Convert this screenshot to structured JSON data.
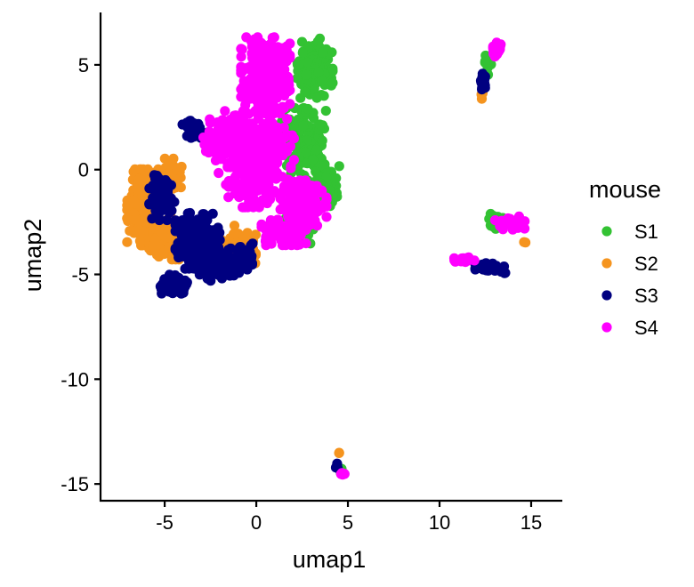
{
  "chart_data": {
    "type": "scatter",
    "xlabel": "umap1",
    "ylabel": "umap2",
    "xlim": [
      -8.5,
      16.7
    ],
    "ylim": [
      -15.8,
      7.5
    ],
    "x_ticks": [
      -5,
      0,
      5,
      10,
      15
    ],
    "y_ticks": [
      5,
      0,
      -5,
      -10,
      -15
    ],
    "x_tick_labels": [
      "-5",
      "0",
      "5",
      "10",
      "15"
    ],
    "y_tick_labels": [
      "5",
      "0",
      "-5",
      "-10",
      "-15"
    ],
    "grid": false,
    "legend": {
      "title": "mouse",
      "placement": "right",
      "entries": [
        "S1",
        "S2",
        "S3",
        "S4"
      ]
    },
    "series": [
      {
        "name": "S1",
        "color": "#33c233",
        "clusters": [
          {
            "cx": 3.2,
            "cy": 4.8,
            "sx": 0.8,
            "sy": 1.2,
            "n": 160
          },
          {
            "cx": 2.6,
            "cy": 1.0,
            "sx": 1.0,
            "sy": 1.6,
            "n": 160
          },
          {
            "cx": 3.8,
            "cy": -0.8,
            "sx": 0.6,
            "sy": 0.8,
            "n": 80
          },
          {
            "cx": 2.2,
            "cy": -2.8,
            "sx": 0.8,
            "sy": 0.6,
            "n": 60
          },
          {
            "cx": 13.0,
            "cy": -2.5,
            "sx": 0.4,
            "sy": 0.5,
            "n": 20
          },
          {
            "cx": 12.6,
            "cy": 5.0,
            "sx": 0.2,
            "sy": 0.5,
            "n": 12
          },
          {
            "cx": 4.6,
            "cy": -14.4,
            "sx": 0.1,
            "sy": 0.2,
            "n": 4
          }
        ]
      },
      {
        "name": "S2",
        "color": "#f5941e",
        "clusters": [
          {
            "cx": -6.2,
            "cy": -1.8,
            "sx": 0.7,
            "sy": 1.5,
            "n": 320
          },
          {
            "cx": -5.0,
            "cy": -3.2,
            "sx": 0.7,
            "sy": 0.9,
            "n": 140
          },
          {
            "cx": -4.6,
            "cy": -0.2,
            "sx": 0.5,
            "sy": 0.6,
            "n": 80
          },
          {
            "cx": -1.0,
            "cy": -3.5,
            "sx": 0.8,
            "sy": 0.8,
            "n": 50
          },
          {
            "cx": 14.6,
            "cy": -3.5,
            "sx": 0.1,
            "sy": 0.1,
            "n": 2
          },
          {
            "cx": 12.3,
            "cy": 3.5,
            "sx": 0.1,
            "sy": 0.2,
            "n": 4
          },
          {
            "cx": 4.5,
            "cy": -13.5,
            "sx": 0.05,
            "sy": 0.05,
            "n": 2
          }
        ]
      },
      {
        "name": "S3",
        "color": "#000080",
        "clusters": [
          {
            "cx": -3.2,
            "cy": -3.4,
            "sx": 1.0,
            "sy": 1.1,
            "n": 260
          },
          {
            "cx": -4.5,
            "cy": -5.5,
            "sx": 0.6,
            "sy": 0.4,
            "n": 120
          },
          {
            "cx": -2.0,
            "cy": -4.7,
            "sx": 0.9,
            "sy": 0.5,
            "n": 100
          },
          {
            "cx": -5.2,
            "cy": -1.2,
            "sx": 0.6,
            "sy": 1.0,
            "n": 70
          },
          {
            "cx": -0.8,
            "cy": -4.2,
            "sx": 0.7,
            "sy": 0.6,
            "n": 60
          },
          {
            "cx": -3.3,
            "cy": 2.0,
            "sx": 0.6,
            "sy": 0.4,
            "n": 30
          },
          {
            "cx": 12.4,
            "cy": 4.3,
            "sx": 0.12,
            "sy": 0.4,
            "n": 25
          },
          {
            "cx": 12.8,
            "cy": -4.7,
            "sx": 0.7,
            "sy": 0.2,
            "n": 40
          },
          {
            "cx": 4.4,
            "cy": -14.1,
            "sx": 0.06,
            "sy": 0.12,
            "n": 4
          }
        ]
      },
      {
        "name": "S4",
        "color": "#ff00ff",
        "clusters": [
          {
            "cx": 0.5,
            "cy": 4.5,
            "sx": 1.1,
            "sy": 1.5,
            "n": 280
          },
          {
            "cx": 0.0,
            "cy": 0.5,
            "sx": 1.7,
            "sy": 1.9,
            "n": 380
          },
          {
            "cx": 2.5,
            "cy": -1.6,
            "sx": 1.1,
            "sy": 0.9,
            "n": 160
          },
          {
            "cx": -1.8,
            "cy": 1.5,
            "sx": 0.9,
            "sy": 0.9,
            "n": 100
          },
          {
            "cx": 1.5,
            "cy": -3.0,
            "sx": 1.0,
            "sy": 0.5,
            "n": 110
          },
          {
            "cx": 13.1,
            "cy": 5.7,
            "sx": 0.2,
            "sy": 0.3,
            "n": 24
          },
          {
            "cx": 14.0,
            "cy": -2.6,
            "sx": 0.8,
            "sy": 0.3,
            "n": 26
          },
          {
            "cx": 11.3,
            "cy": -4.3,
            "sx": 0.5,
            "sy": 0.15,
            "n": 22
          },
          {
            "cx": 4.7,
            "cy": -14.5,
            "sx": 0.1,
            "sy": 0.1,
            "n": 5
          }
        ]
      }
    ]
  }
}
